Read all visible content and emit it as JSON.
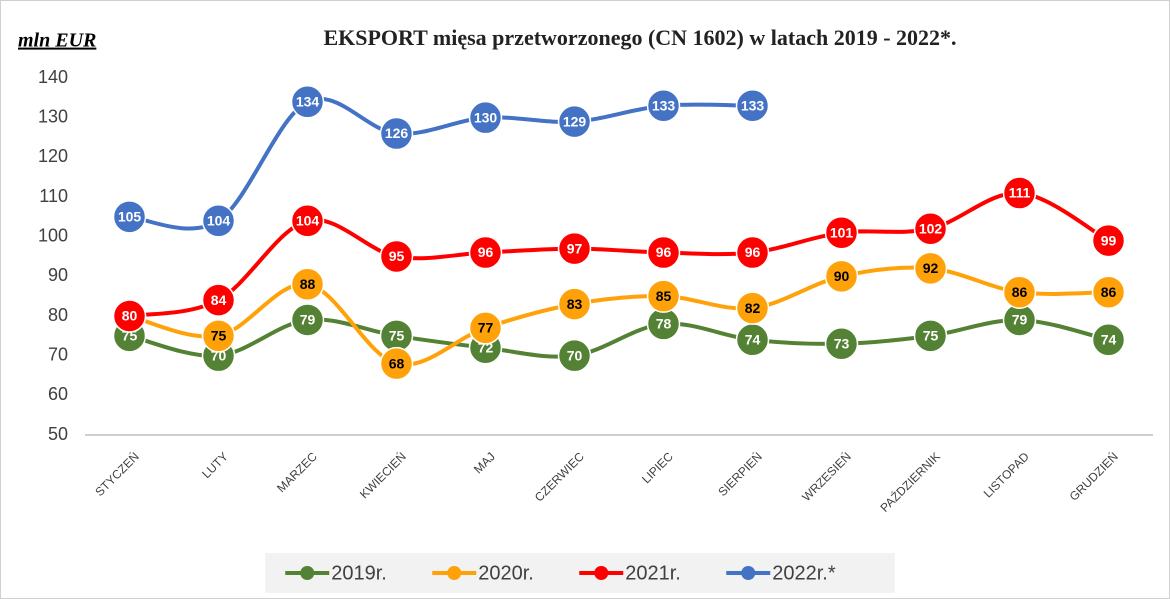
{
  "chart_data": {
    "type": "line",
    "title": "EKSPORT mięsa przetworzonego  (CN 1602) w latach 2019 - 2022*.",
    "y_label": "mln EUR",
    "categories": [
      "STYCZEŃ",
      "LUTY",
      "MARZEC",
      "KWIECIEŃ",
      "MAJ",
      "CZERWIEC",
      "LIPIEC",
      "SIERPIEŃ",
      "WRZESIEŃ",
      "PAŹDZIERNIK",
      "LISTOPAD",
      "GRUDZIEŃ"
    ],
    "series": [
      {
        "name": "2019r.",
        "color": "#548235",
        "values": [
          75,
          70,
          79,
          75,
          72,
          70,
          78,
          74,
          73,
          75,
          79,
          74
        ]
      },
      {
        "name": "2020r.",
        "color": "#ffa20a",
        "values": [
          80,
          75,
          88,
          68,
          77,
          83,
          85,
          82,
          90,
          92,
          86,
          86
        ]
      },
      {
        "name": "2021r.",
        "color": "#ff0000",
        "values": [
          80,
          84,
          104,
          95,
          96,
          97,
          96,
          96,
          101,
          102,
          111,
          99
        ]
      },
      {
        "name": "2022r.*",
        "color": "#4472c4",
        "values": [
          105,
          104,
          134,
          126,
          130,
          129,
          133,
          133,
          null,
          null,
          null,
          null
        ]
      }
    ],
    "ylim": [
      50,
      140
    ],
    "yticks": [
      50,
      60,
      70,
      80,
      90,
      100,
      110,
      120,
      130,
      140
    ],
    "grid": false
  }
}
